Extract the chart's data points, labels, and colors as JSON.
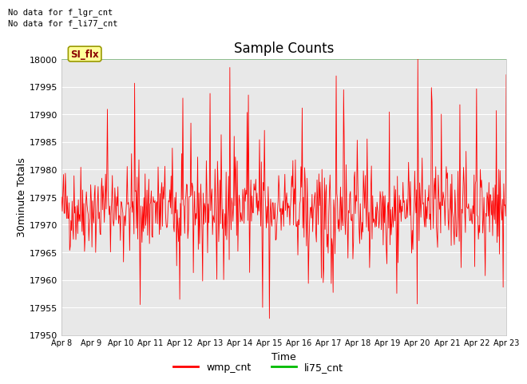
{
  "title": "Sample Counts",
  "xlabel": "Time",
  "ylabel": "30minute Totals",
  "ylim": [
    17950,
    18000
  ],
  "yticks": [
    17950,
    17955,
    17960,
    17965,
    17970,
    17975,
    17980,
    17985,
    17990,
    17995,
    18000
  ],
  "xtick_labels": [
    "Apr 8",
    "Apr 9",
    "Apr 10",
    "Apr 11",
    "Apr 12",
    "Apr 13",
    "Apr 14",
    "Apr 15",
    "Apr 16",
    "Apr 17",
    "Apr 18",
    "Apr 19",
    "Apr 20",
    "Apr 21",
    "Apr 22",
    "Apr 23"
  ],
  "wmp_color": "#ff0000",
  "li75_color": "#00bb00",
  "si_flx_bg": "#ffff99",
  "si_flx_edge": "#999900",
  "annotation1": "No data for f_lgr_cnt",
  "annotation2": "No data for f_li77_cnt",
  "si_flx_label": "SI_flx",
  "legend_wmp": "wmp_cnt",
  "legend_li75": "li75_cnt",
  "plot_bg_color": "#e8e8e8",
  "fig_bg_color": "#ffffff",
  "n_points": 720,
  "base_value": 17973,
  "noise_std": 4,
  "spike_value": 18000,
  "min_dip": 17953,
  "title_fontsize": 12,
  "axis_fontsize": 8,
  "label_fontsize": 9
}
